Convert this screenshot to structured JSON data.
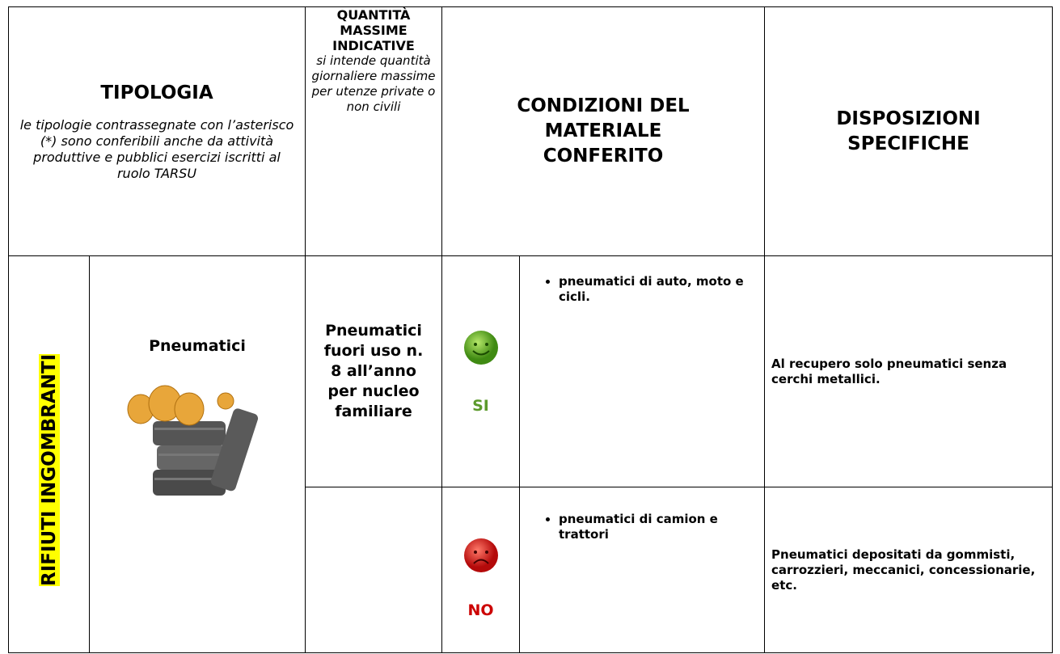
{
  "header": {
    "tipologia": {
      "title": "TIPOLOGIA",
      "note": "le tipologie contrassegnate con l’asterisco (*) sono conferibili anche da attività produttive e pubblici esercizi iscritti al ruolo TARSU"
    },
    "quantita": {
      "title": "QUANTITÀ MASSIME INDICATIVE",
      "note": "si intende quantità giornaliere massime per utenze private o non civili"
    },
    "condizioni": "CONDIZIONI DEL MATERIALE CONFERITO",
    "disposizioni": "DISPOSIZIONI SPECIFICHE"
  },
  "category": "RIFIUTI INGOMBRANTI",
  "item": "Pneumatici",
  "quantity": "Pneumatici fuori uso n. 8 all’anno per nucleo familiare",
  "rows": [
    {
      "status": "SI",
      "conditions": [
        "pneumatici di auto, moto e cicli."
      ],
      "disposition": "Al recupero solo pneumatici senza cerchi metallici."
    },
    {
      "status": "NO",
      "conditions": [
        "pneumatici di camion e trattori"
      ],
      "disposition": "Pneumatici depositati da gommisti, carrozzieri, meccanici, concessionarie, etc."
    }
  ]
}
